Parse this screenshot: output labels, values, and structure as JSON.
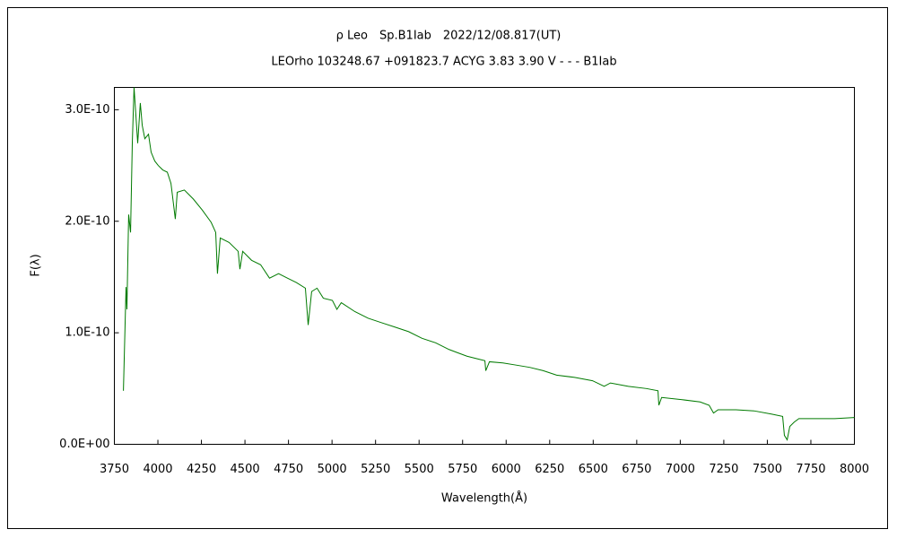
{
  "chart_data": {
    "type": "line",
    "title": "ρ Leo　Sp.B1Iab　2022/12/08.817(UT)",
    "subtitle": "LEOrho 103248.67 +091823.7 ACYG 3.83 3.90 V - - - B1Iab",
    "xlabel": "Wavelength(Å)",
    "ylabel": "F(λ)",
    "color": "#007a00",
    "grid": false,
    "xlim": [
      3750,
      8000
    ],
    "xticks": [
      3750,
      4000,
      4250,
      4500,
      4750,
      5000,
      5250,
      5500,
      5750,
      6000,
      6250,
      6500,
      6750,
      7000,
      7250,
      7500,
      7750,
      8000
    ],
    "ylim": [
      0,
      3.2e-10
    ],
    "yticks": [
      {
        "value": 0,
        "label": "0.0E+00"
      },
      {
        "value": 1e-10,
        "label": "1.0E-10"
      },
      {
        "value": 2e-10,
        "label": "2.0E-10"
      },
      {
        "value": 3e-10,
        "label": "3.0E-10"
      }
    ],
    "x": [
      3802,
      3817,
      3822,
      3832,
      3843,
      3853,
      3863,
      3874,
      3884,
      3899,
      3910,
      3925,
      3946,
      3961,
      3982,
      4002,
      4028,
      4054,
      4075,
      4100,
      4111,
      4152,
      4203,
      4255,
      4306,
      4332,
      4342,
      4358,
      4409,
      4461,
      4471,
      4487,
      4538,
      4590,
      4641,
      4693,
      4744,
      4796,
      4847,
      4863,
      4883,
      4914,
      4950,
      5002,
      5028,
      5053,
      5131,
      5208,
      5285,
      5363,
      5440,
      5517,
      5595,
      5672,
      5723,
      5775,
      5826,
      5878,
      5883,
      5904,
      5981,
      6058,
      6135,
      6213,
      6290,
      6393,
      6496,
      6563,
      6599,
      6702,
      6805,
      6872,
      6877,
      6893,
      7011,
      7114,
      7166,
      7191,
      7217,
      7320,
      7423,
      7526,
      7588,
      7598,
      7614,
      7629,
      7655,
      7681,
      7784,
      7887,
      8000
    ],
    "values": [
      4.8e-11,
      1.41e-10,
      1.21e-10,
      2.06e-10,
      1.9e-10,
      2.7e-10,
      3.2e-10,
      2.94e-10,
      2.7e-10,
      3.06e-10,
      2.86e-10,
      2.74e-10,
      2.78e-10,
      2.62e-10,
      2.54e-10,
      2.5e-10,
      2.46e-10,
      2.44e-10,
      2.34e-10,
      2.02e-10,
      2.26e-10,
      2.28e-10,
      2.2e-10,
      2.1e-10,
      1.99e-10,
      1.9e-10,
      1.53e-10,
      1.85e-10,
      1.81e-10,
      1.73e-10,
      1.57e-10,
      1.73e-10,
      1.65e-10,
      1.61e-10,
      1.49e-10,
      1.53e-10,
      1.49e-10,
      1.45e-10,
      1.4e-10,
      1.07e-10,
      1.37e-10,
      1.4e-10,
      1.31e-10,
      1.29e-10,
      1.21e-10,
      1.27e-10,
      1.19e-10,
      1.13e-10,
      1.09e-10,
      1.05e-10,
      1.01e-10,
      9.5e-11,
      9.1e-11,
      8.5e-11,
      8.2e-11,
      7.9e-11,
      7.7e-11,
      7.5e-11,
      6.6e-11,
      7.4e-11,
      7.3e-11,
      7.1e-11,
      6.9e-11,
      6.6e-11,
      6.2e-11,
      6e-11,
      5.7e-11,
      5.2e-11,
      5.5e-11,
      5.2e-11,
      5e-11,
      4.8e-11,
      3.5e-11,
      4.2e-11,
      4e-11,
      3.8e-11,
      3.5e-11,
      2.8e-11,
      3.1e-11,
      3.1e-11,
      3e-11,
      2.7e-11,
      2.5e-11,
      8e-12,
      4e-12,
      1.6e-11,
      2e-11,
      2.3e-11,
      2.3e-11,
      2.3e-11,
      2.4e-11
    ]
  }
}
